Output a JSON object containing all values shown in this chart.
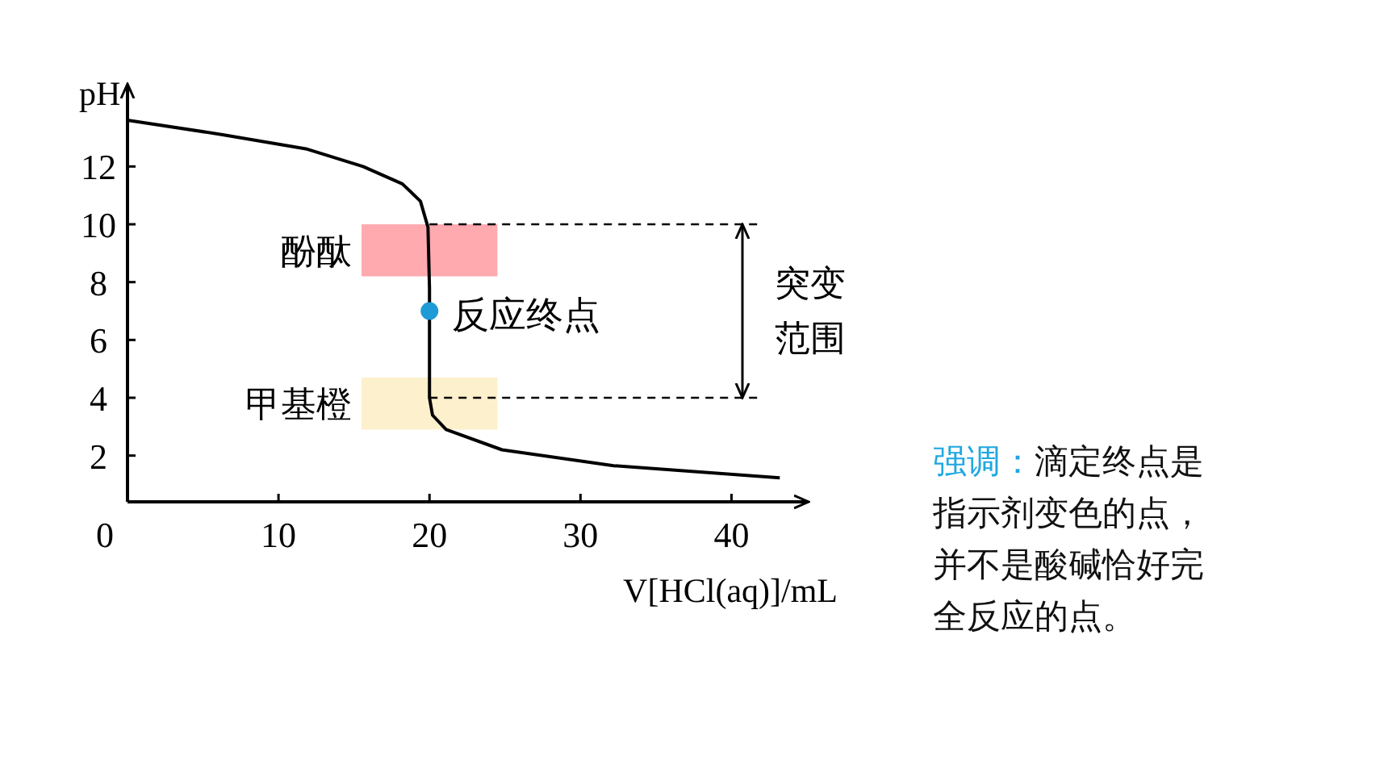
{
  "chart_data": {
    "type": "line",
    "xlabel": "V[HCl(aq)]/mL",
    "ylabel": "pH",
    "xlim": [
      0,
      45
    ],
    "ylim": [
      0.4,
      14.8
    ],
    "xticks": [
      0,
      10,
      20,
      30,
      40
    ],
    "yticks": [
      2,
      4,
      6,
      8,
      10,
      12
    ],
    "grid": false,
    "series": [
      {
        "color": "#000000",
        "x": [
          0,
          6.3,
          11.9,
          15.6,
          18.2,
          19.4,
          19.9,
          20,
          20,
          20.2,
          21.1,
          24.8,
          32.2,
          43.2
        ],
        "values": [
          13.6,
          13.1,
          12.6,
          12.0,
          11.4,
          10.8,
          9.9,
          7.8,
          4.0,
          3.4,
          2.9,
          2.2,
          1.65,
          1.23
        ]
      },
      {
        "type": "scatter",
        "marker": "circle",
        "color": "#1e9bd7",
        "x": [
          20
        ],
        "values": [
          7
        ]
      }
    ],
    "bands": [
      {
        "axis": "y",
        "from": 8.2,
        "to": 10,
        "label": "酚酞",
        "color": "#ffaaaf"
      },
      {
        "axis": "y",
        "from": 2.9,
        "to": 4.7,
        "label": "甲基橙",
        "color": "#fdf0cc"
      }
    ],
    "ref_lines": [
      {
        "axis": "y",
        "value": 10,
        "line_style": "dashed"
      },
      {
        "axis": "y",
        "value": 4,
        "line_style": "dashed"
      }
    ],
    "annotations": [
      {
        "text": "反应终点",
        "x": 20,
        "y": 7
      },
      "突变范围",
      "强调：",
      "滴定终点是指示剂变色的点，并不是酸碱恰好完全反应的点。"
    ]
  }
}
